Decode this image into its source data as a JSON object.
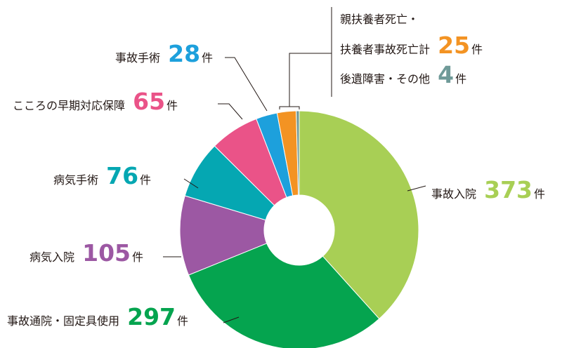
{
  "chart_data": {
    "type": "pie",
    "donut": true,
    "unit": "件",
    "slices": [
      {
        "label": "事故入院",
        "value": 373,
        "color": "#a8cf55"
      },
      {
        "label": "事故通院・固定具使用",
        "value": 297,
        "color": "#05a44f"
      },
      {
        "label": "病気入院",
        "value": 105,
        "color": "#9c58a3"
      },
      {
        "label": "病気手術",
        "value": 76,
        "color": "#05a7b2"
      },
      {
        "label": "こころの早期対応保障",
        "value": 65,
        "color": "#ea5388"
      },
      {
        "label": "事故手術",
        "value": 28,
        "color": "#1da0dc"
      },
      {
        "label": "親扶養者死亡・扶養者事故死亡計",
        "value": 25,
        "color": "#f39323"
      },
      {
        "label": "後遺障害・その他",
        "value": 4,
        "color": "#6f9a98"
      }
    ],
    "label_lines": {
      "s0": "事故入院",
      "s1": "事故通院・固定具使用",
      "s2": "病気入院",
      "s3": "病気手術",
      "s4": "こころの早期対応保障",
      "s5": "事故手術",
      "s6_line1": "親扶養者死亡・",
      "s6_line2": "扶養者事故死亡計",
      "s7": "後遺障害・その他"
    },
    "values_text": {
      "s0": "373",
      "s1": "297",
      "s2": "105",
      "s3": "76",
      "s4": "65",
      "s5": "28",
      "s6": "25",
      "s7": "4"
    }
  }
}
